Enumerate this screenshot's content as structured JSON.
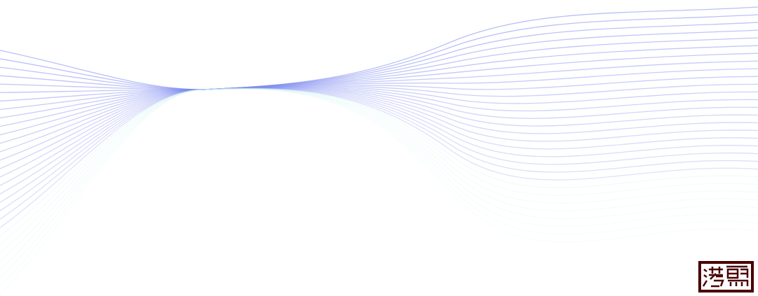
{
  "background": "#ffffff",
  "wave": {
    "line_color": "#7f8cf0",
    "fade_color": "#c8f0f0",
    "line_count": 30
  },
  "seal": {
    "icon": "chinese-seal-logo",
    "color": "#4a0000"
  }
}
